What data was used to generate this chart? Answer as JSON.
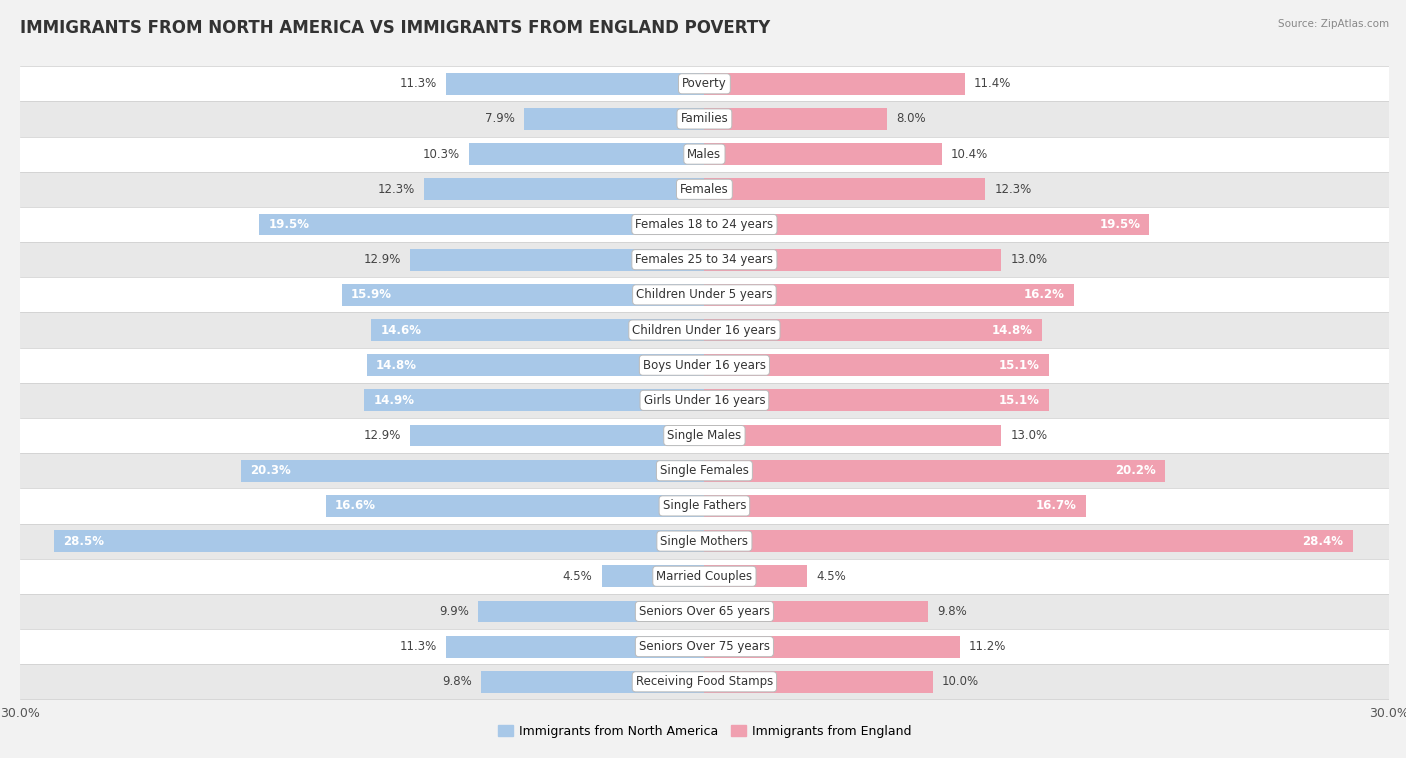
{
  "title": "IMMIGRANTS FROM NORTH AMERICA VS IMMIGRANTS FROM ENGLAND POVERTY",
  "source": "Source: ZipAtlas.com",
  "categories": [
    "Poverty",
    "Families",
    "Males",
    "Females",
    "Females 18 to 24 years",
    "Females 25 to 34 years",
    "Children Under 5 years",
    "Children Under 16 years",
    "Boys Under 16 years",
    "Girls Under 16 years",
    "Single Males",
    "Single Females",
    "Single Fathers",
    "Single Mothers",
    "Married Couples",
    "Seniors Over 65 years",
    "Seniors Over 75 years",
    "Receiving Food Stamps"
  ],
  "north_america": [
    11.3,
    7.9,
    10.3,
    12.3,
    19.5,
    12.9,
    15.9,
    14.6,
    14.8,
    14.9,
    12.9,
    20.3,
    16.6,
    28.5,
    4.5,
    9.9,
    11.3,
    9.8
  ],
  "england": [
    11.4,
    8.0,
    10.4,
    12.3,
    19.5,
    13.0,
    16.2,
    14.8,
    15.1,
    15.1,
    13.0,
    20.2,
    16.7,
    28.4,
    4.5,
    9.8,
    11.2,
    10.0
  ],
  "color_north_america": "#a8c8e8",
  "color_england": "#f0a0b0",
  "color_na_highlight": "#7aaed4",
  "color_eng_highlight": "#e8849a",
  "background_color": "#f2f2f2",
  "row_color_light": "#ffffff",
  "row_color_dark": "#e8e8e8",
  "axis_limit": 30.0,
  "label_fontsize": 8.5,
  "cat_fontsize": 8.5,
  "title_fontsize": 12,
  "bar_height": 0.62,
  "white_text_threshold": 14.5,
  "legend_color_na": "#a8c8e8",
  "legend_color_eng": "#f0a0b0"
}
